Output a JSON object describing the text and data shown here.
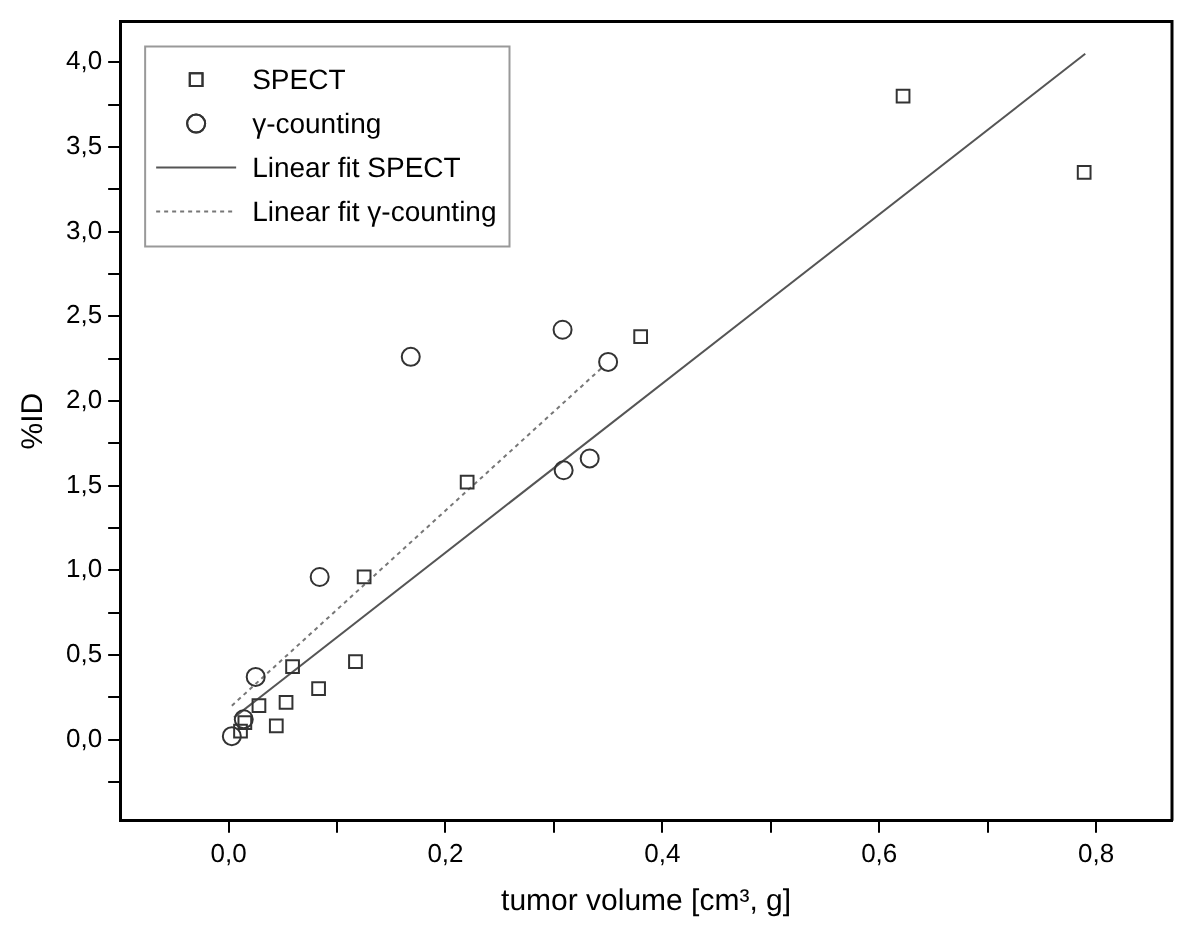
{
  "chart_data": {
    "type": "scatter",
    "xlabel": "tumor volume [cm³, g]",
    "ylabel": "%ID",
    "xlim": [
      -0.1,
      0.87
    ],
    "ylim": [
      -0.48,
      4.24
    ],
    "xticks": [
      {
        "value": 0,
        "label": "0,0"
      },
      {
        "value": 0.1,
        "label": null
      },
      {
        "value": 0.2,
        "label": "0,2"
      },
      {
        "value": 0.3,
        "label": null
      },
      {
        "value": 0.4,
        "label": "0,4"
      },
      {
        "value": 0.5,
        "label": null
      },
      {
        "value": 0.6,
        "label": "0,6"
      },
      {
        "value": 0.7,
        "label": null
      },
      {
        "value": 0.8,
        "label": "0,8"
      }
    ],
    "yticks": [
      {
        "value": -0.25,
        "label": null
      },
      {
        "value": 0,
        "label": "0,0"
      },
      {
        "value": 0.25,
        "label": null
      },
      {
        "value": 0.5,
        "label": "0,5"
      },
      {
        "value": 0.75,
        "label": null
      },
      {
        "value": 1,
        "label": "1,0"
      },
      {
        "value": 1.25,
        "label": null
      },
      {
        "value": 1.5,
        "label": "1,5"
      },
      {
        "value": 1.75,
        "label": null
      },
      {
        "value": 2,
        "label": "2,0"
      },
      {
        "value": 2.25,
        "label": null
      },
      {
        "value": 2.5,
        "label": "2,5"
      },
      {
        "value": 2.75,
        "label": null
      },
      {
        "value": 3,
        "label": "3,0"
      },
      {
        "value": 3.25,
        "label": null
      },
      {
        "value": 3.5,
        "label": "3,5"
      },
      {
        "value": 3.75,
        "label": null
      },
      {
        "value": 4,
        "label": "4,0"
      }
    ],
    "grid": false,
    "legend": "top left",
    "series": [
      {
        "name": "SPECT",
        "marker": "square",
        "color": "#333333",
        "x": [
          0.011,
          0.015,
          0.028,
          0.044,
          0.053,
          0.059,
          0.083,
          0.117,
          0.125,
          0.22,
          0.38,
          0.622,
          0.789
        ],
        "values": [
          0.05,
          0.1,
          0.2,
          0.08,
          0.22,
          0.43,
          0.3,
          0.46,
          0.96,
          1.52,
          2.38,
          3.8,
          3.35
        ]
      },
      {
        "name": "γ-counting",
        "marker": "circle",
        "color": "#333333",
        "x": [
          0.003,
          0.014,
          0.025,
          0.084,
          0.168,
          0.308,
          0.309,
          0.333,
          0.35
        ],
        "values": [
          0.02,
          0.12,
          0.37,
          0.96,
          2.26,
          2.42,
          1.59,
          1.66,
          2.23
        ]
      },
      {
        "name": "Linear fit SPECT",
        "type": "line",
        "line_style": "solid",
        "color": "#555555",
        "x": [
          0.005,
          0.79
        ],
        "values": [
          0.13,
          4.05
        ]
      },
      {
        "name": "Linear fit γ-counting",
        "type": "line",
        "line_style": "dotted",
        "color": "#777777",
        "x": [
          0.003,
          0.345
        ],
        "values": [
          0.2,
          2.2
        ]
      }
    ]
  }
}
